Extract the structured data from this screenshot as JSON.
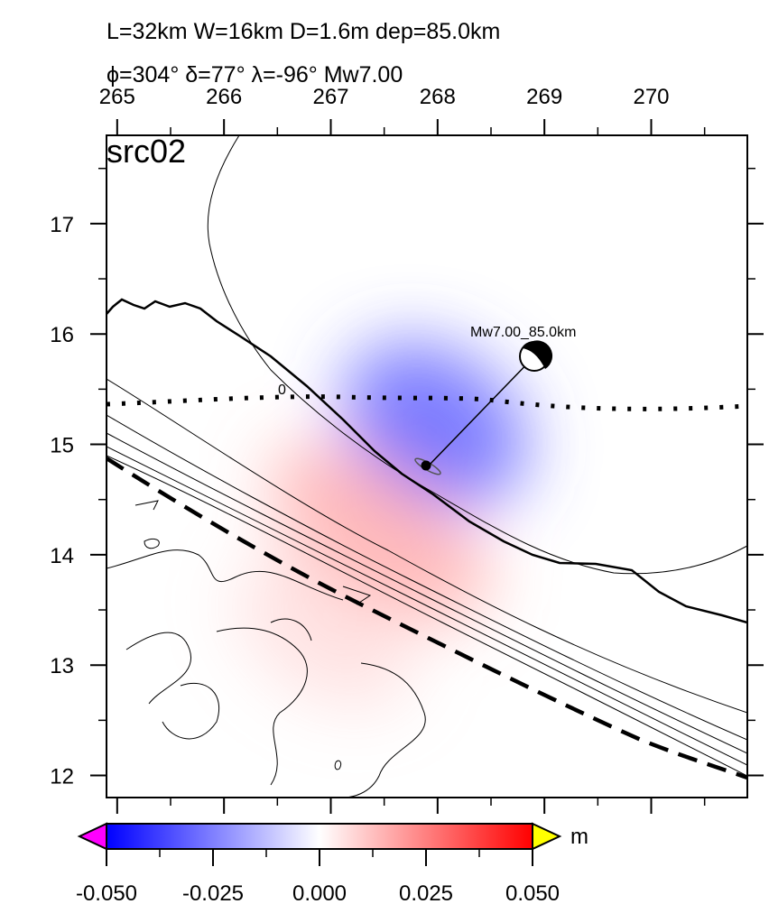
{
  "header": {
    "line1": "L=32km W=16km D=1.6m dep=85.0km",
    "line2": "ϕ=304° δ=77° λ=-96° Mw7.00"
  },
  "panel_label": "src02",
  "epicenter_label": "Mw7.00_85.0km",
  "contour_label": "0",
  "colorbar": {
    "unit": "m",
    "ticks": [
      "-0.050",
      "-0.025",
      "0.000",
      "0.025",
      "0.050"
    ],
    "colors": {
      "low": "#0000ff",
      "mid": "#ffffff",
      "high": "#ff0000",
      "under": "#ff00ff",
      "over": "#ffff00"
    }
  },
  "chart_data": {
    "type": "heatmap",
    "x_ticks": [
      "265",
      "266",
      "267",
      "268",
      "269",
      "270"
    ],
    "y_ticks": [
      "17",
      "16",
      "15",
      "14",
      "13",
      "12"
    ],
    "x_values": [
      265,
      266,
      267,
      268,
      269,
      270
    ],
    "y_values": [
      17,
      16,
      15,
      14,
      13,
      12
    ],
    "xlim": [
      264.9,
      270.9
    ],
    "ylim": [
      11.8,
      17.8
    ],
    "value_range": [
      -0.05,
      0.05
    ],
    "subsidence_peak": {
      "lon": 268.1,
      "lat": 14.9,
      "value": -0.02
    },
    "uplift_peak": {
      "lon": 267.5,
      "lat": 14.2,
      "value": 0.012
    },
    "epicenter": {
      "lon": 267.93,
      "lat": 14.81
    },
    "beachball": {
      "lon": 268.93,
      "lat": 15.8
    }
  }
}
